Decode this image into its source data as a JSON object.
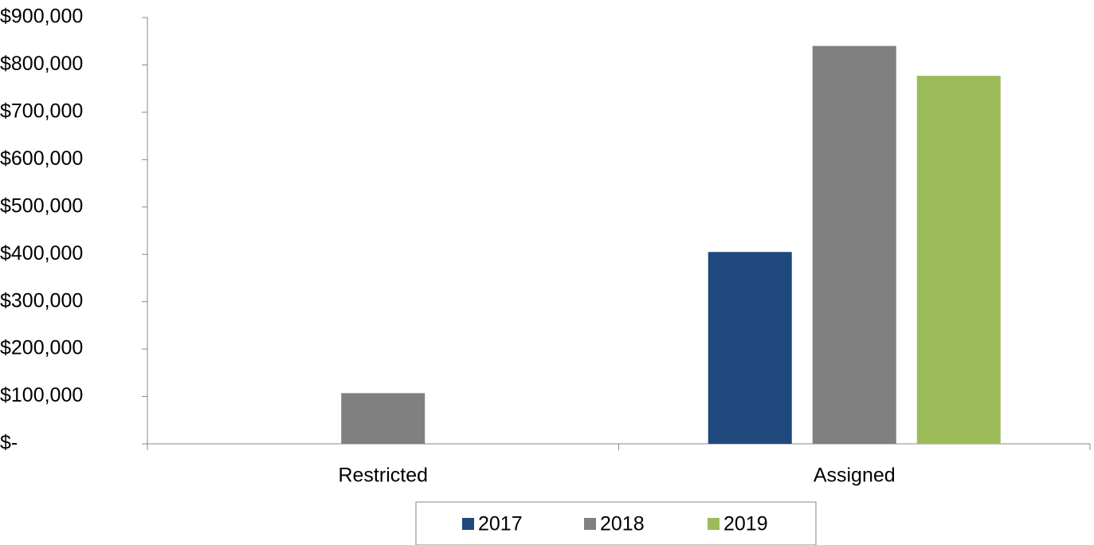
{
  "chart_data": {
    "type": "bar",
    "categories": [
      "Restricted",
      "Assigned"
    ],
    "series": [
      {
        "name": "2017",
        "color": "#1f497d",
        "values": [
          0,
          405000
        ]
      },
      {
        "name": "2018",
        "color": "#808080",
        "values": [
          107000,
          840000
        ]
      },
      {
        "name": "2019",
        "color": "#9bbb59",
        "values": [
          0,
          777000
        ]
      }
    ],
    "ylim": [
      0,
      900000
    ],
    "yticks": [
      {
        "value": 0,
        "label": "$-"
      },
      {
        "value": 100000,
        "label": "$100,000"
      },
      {
        "value": 200000,
        "label": "$200,000"
      },
      {
        "value": 300000,
        "label": "$300,000"
      },
      {
        "value": 400000,
        "label": "$400,000"
      },
      {
        "value": 500000,
        "label": "$500,000"
      },
      {
        "value": 600000,
        "label": "$600,000"
      },
      {
        "value": 700000,
        "label": "$700,000"
      },
      {
        "value": 800000,
        "label": "$800,000"
      },
      {
        "value": 900000,
        "label": "$900,000"
      }
    ],
    "grid": false,
    "legend": "bottom"
  }
}
